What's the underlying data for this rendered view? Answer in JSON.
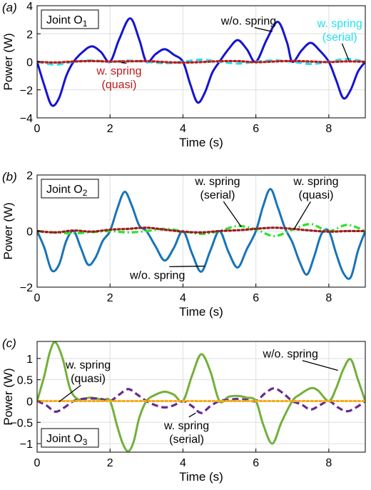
{
  "chart_data": [
    {
      "type": "line",
      "panel_label": "(a)",
      "box_label": "Joint O",
      "box_sub": "1",
      "xlabel": "Time (s)",
      "ylabel": "Power (W)",
      "xlim": [
        0,
        9
      ],
      "ylim": [
        -4,
        4
      ],
      "xticks": [
        0,
        2,
        4,
        6,
        8
      ],
      "yticks": [
        -4,
        -2,
        0,
        2,
        4
      ],
      "grid": true,
      "series": [
        {
          "color": "#1414d2",
          "style": "solid",
          "x": [
            0,
            0.2,
            0.4,
            0.6,
            0.8,
            1.0,
            1.25,
            1.5,
            1.75,
            2.0,
            2.25,
            2.55,
            2.8,
            3.0,
            3.25,
            3.5,
            3.75,
            4.0,
            4.2,
            4.4,
            4.6,
            4.8,
            5.0,
            5.25,
            5.5,
            5.75,
            6.0,
            6.3,
            6.6,
            6.85,
            7.0,
            7.25,
            7.5,
            7.75,
            8.0,
            8.2,
            8.4,
            8.6,
            8.8,
            9.0
          ],
          "y": [
            0,
            -1.7,
            -3.1,
            -2.6,
            -1.0,
            0,
            0.7,
            1.1,
            0.7,
            0,
            1.6,
            3.1,
            1.6,
            0,
            0.55,
            0.9,
            0.5,
            0,
            -1.6,
            -2.9,
            -2.2,
            -0.8,
            0,
            0.9,
            1.55,
            0.9,
            0,
            1.6,
            2.85,
            1.4,
            0,
            0.8,
            1.35,
            0.8,
            0,
            -1.3,
            -2.6,
            -2.0,
            -0.7,
            0
          ]
        },
        {
          "color": "#1fe0f0",
          "style": "dashed",
          "x": [
            0,
            0.5,
            1.0,
            1.5,
            2.0,
            2.5,
            3.0,
            3.5,
            4.0,
            4.5,
            5.0,
            5.5,
            6.0,
            6.5,
            7.0,
            7.5,
            8.0,
            8.5,
            9.0
          ],
          "y": [
            0,
            -0.2,
            0,
            0.1,
            0,
            0.08,
            0,
            -0.1,
            0,
            0.15,
            0,
            -0.12,
            0,
            0.1,
            0,
            -0.15,
            0,
            0.2,
            0
          ]
        },
        {
          "color": "#c01818",
          "style": "dotted",
          "x": [
            0,
            0.5,
            1.0,
            1.5,
            2.0,
            2.5,
            3.0,
            3.5,
            4.0,
            4.5,
            5.0,
            5.5,
            6.0,
            6.5,
            7.0,
            7.5,
            8.0,
            8.5,
            9.0
          ],
          "y": [
            0,
            -0.05,
            0.02,
            0.05,
            0.02,
            0.03,
            0.05,
            -0.02,
            -0.06,
            -0.02,
            0.04,
            0.05,
            -0.03,
            0.02,
            0.06,
            0.02,
            -0.02,
            0.03,
            0
          ]
        }
      ],
      "annotations": [
        {
          "lines": [
            "w/o. spring"
          ],
          "color": "#000000",
          "tx": 5.8,
          "ty": 2.95,
          "ax": 6.45,
          "ay": 2.15
        },
        {
          "lines": [
            "w. spring",
            "(serial)"
          ],
          "color": "#1fe0f0",
          "tx": 8.3,
          "ty": 2.3,
          "ax": 8.55,
          "ay": 0.1
        },
        {
          "lines": [
            "w. spring",
            "(quasi)"
          ],
          "color": "#c01818",
          "tx": 2.25,
          "ty": -1.1,
          "ax": 2.45,
          "ay": -0.1
        }
      ]
    },
    {
      "type": "line",
      "panel_label": "(b)",
      "box_label": "Joint O",
      "box_sub": "2",
      "xlabel": "Time (s)",
      "ylabel": "Power (W)",
      "xlim": [
        0,
        9
      ],
      "ylim": [
        -2,
        2
      ],
      "xticks": [
        0,
        2,
        4,
        6,
        8
      ],
      "yticks": [
        -2,
        0,
        2
      ],
      "grid": true,
      "series": [
        {
          "color": "#1874b8",
          "style": "solid",
          "x": [
            0,
            0.2,
            0.4,
            0.6,
            0.8,
            1.0,
            1.2,
            1.4,
            1.6,
            1.8,
            2.0,
            2.2,
            2.4,
            2.6,
            2.8,
            3.0,
            3.25,
            3.5,
            3.75,
            4.0,
            4.25,
            4.5,
            4.75,
            5.0,
            5.25,
            5.5,
            5.75,
            6.0,
            6.2,
            6.4,
            6.6,
            6.8,
            7.0,
            7.2,
            7.4,
            7.6,
            7.8,
            8.0,
            8.2,
            8.4,
            8.6,
            8.8,
            9.0
          ],
          "y": [
            0,
            -0.6,
            -1.4,
            -1.2,
            -0.35,
            0,
            -0.6,
            -1.2,
            -0.95,
            -0.35,
            0,
            0.8,
            1.4,
            0.9,
            0.2,
            0,
            -0.55,
            -1.05,
            -0.6,
            0,
            -0.8,
            -1.45,
            -0.7,
            0,
            -0.75,
            -1.3,
            -0.65,
            0,
            0.9,
            1.5,
            0.85,
            0.1,
            -0.4,
            -1.1,
            -1.55,
            -0.9,
            -0.1,
            0,
            -0.8,
            -1.5,
            -1.65,
            -0.7,
            0
          ]
        },
        {
          "color": "#2ee02a",
          "style": "dashdot",
          "x": [
            0,
            0.5,
            1.0,
            1.5,
            2.0,
            2.5,
            3.0,
            3.5,
            4.0,
            4.5,
            5.0,
            5.5,
            6.0,
            6.5,
            7.0,
            7.5,
            8.0,
            8.5,
            9.0
          ],
          "y": [
            0,
            -0.05,
            -0.08,
            -0.04,
            0,
            -0.05,
            0,
            0.08,
            0,
            -0.1,
            0,
            0.18,
            0.06,
            -0.18,
            0.05,
            0.25,
            0,
            0.22,
            0
          ]
        },
        {
          "color": "#9b1c1c",
          "style": "dotted",
          "x": [
            0,
            0.5,
            1.0,
            1.5,
            2.0,
            2.5,
            3.0,
            3.5,
            4.0,
            4.5,
            5.0,
            5.5,
            6.0,
            6.5,
            7.0,
            7.5,
            8.0,
            8.5,
            9.0
          ],
          "y": [
            0,
            -0.05,
            0.02,
            -0.02,
            0.05,
            0.08,
            0.12,
            0.05,
            -0.02,
            -0.05,
            0,
            0.03,
            0.08,
            0.12,
            0.08,
            0.02,
            -0.02,
            0,
            0
          ]
        }
      ],
      "annotations": [
        {
          "lines": [
            "w. spring",
            "(serial)"
          ],
          "color": "#000000",
          "tx": 4.95,
          "ty": 1.55,
          "ax": 5.6,
          "ay": 0.15
        },
        {
          "lines": [
            "w. spring",
            "(quasi)"
          ],
          "color": "#000000",
          "tx": 7.65,
          "ty": 1.55,
          "ax": 7.05,
          "ay": 0.08
        },
        {
          "lines": [
            "w/o. spring"
          ],
          "color": "#000000",
          "tx": 3.3,
          "ty": -1.55,
          "ax": 4.6,
          "ay": -1.25
        }
      ]
    },
    {
      "type": "line",
      "panel_label": "(c)",
      "box_label": "Joint O",
      "box_sub": "3",
      "xlabel": "Time (s)",
      "ylabel": "Power (W)",
      "xlim": [
        0,
        9
      ],
      "ylim": [
        -1.2,
        1.4
      ],
      "xticks": [
        0,
        2,
        4,
        6,
        8
      ],
      "yticks": [
        -1,
        -0.5,
        0,
        0.5,
        1
      ],
      "grid": true,
      "series": [
        {
          "color": "#72b03a",
          "style": "solid",
          "x": [
            0,
            0.2,
            0.35,
            0.5,
            0.7,
            0.9,
            1.1,
            1.3,
            1.5,
            1.8,
            2.0,
            2.2,
            2.35,
            2.5,
            2.65,
            2.8,
            3.0,
            3.25,
            3.5,
            3.75,
            4.0,
            4.25,
            4.5,
            4.75,
            5.0,
            5.25,
            5.5,
            5.75,
            6.0,
            6.2,
            6.45,
            6.7,
            7.0,
            7.2,
            7.5,
            7.7,
            8.0,
            8.2,
            8.4,
            8.6,
            8.8,
            9.0
          ],
          "y": [
            0,
            0.6,
            1.15,
            1.38,
            1.0,
            0.3,
            0.05,
            0.06,
            0.08,
            0.03,
            0,
            -0.6,
            -1.0,
            -1.18,
            -0.95,
            -0.4,
            0,
            0.15,
            0.22,
            0.15,
            0,
            0.6,
            1.1,
            0.7,
            0,
            0.1,
            0.12,
            0.08,
            0,
            -0.55,
            -1.0,
            -0.5,
            0,
            0.15,
            0.3,
            0.25,
            0,
            0.3,
            0.75,
            0.98,
            0.5,
            0
          ]
        },
        {
          "color": "#6a2b8c",
          "style": "dashed",
          "x": [
            0,
            0.25,
            0.5,
            0.75,
            1.0,
            1.25,
            1.5,
            1.75,
            2.0,
            2.25,
            2.5,
            2.75,
            3.0,
            3.25,
            3.5,
            3.75,
            4.0,
            4.25,
            4.5,
            4.75,
            5.0,
            5.25,
            5.5,
            5.75,
            6.0,
            6.25,
            6.5,
            6.75,
            7.0,
            7.25,
            7.5,
            7.75,
            8.0,
            8.25,
            8.5,
            8.75,
            9.0
          ],
          "y": [
            0,
            -0.1,
            -0.25,
            -0.15,
            0,
            0.05,
            0.06,
            0.05,
            0,
            0.15,
            0.28,
            0.15,
            0,
            -0.1,
            -0.15,
            -0.1,
            0,
            -0.12,
            -0.28,
            -0.12,
            0,
            0.03,
            0.05,
            0.03,
            0,
            0.18,
            0.3,
            0.18,
            0,
            -0.08,
            -0.2,
            -0.1,
            0,
            -0.15,
            -0.24,
            -0.15,
            0
          ]
        },
        {
          "color": "#f3ad1c",
          "style": "dotted",
          "x": [
            0,
            9
          ],
          "y": [
            0,
            0
          ]
        }
      ],
      "annotations": [
        {
          "lines": [
            "w/o. spring"
          ],
          "color": "#000000",
          "tx": 6.95,
          "ty": 1.12,
          "ax": 8.25,
          "ay": 0.72
        },
        {
          "lines": [
            "w. spring",
            "(quasi)"
          ],
          "color": "#000000",
          "tx": 1.4,
          "ty": 0.7,
          "ax": 0.6,
          "ay": -0.02
        },
        {
          "lines": [
            "w. spring",
            "(serial)"
          ],
          "color": "#000000",
          "tx": 4.1,
          "ty": -0.72,
          "ax": 4.35,
          "ay": -0.28
        }
      ]
    }
  ]
}
